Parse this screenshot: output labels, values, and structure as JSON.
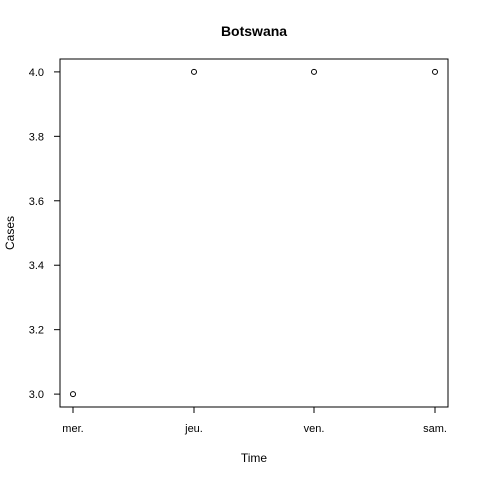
{
  "chart_data": {
    "type": "scatter",
    "title": "Botswana",
    "xlabel": "Time",
    "ylabel": "Cases",
    "categories": [
      "mer.",
      "jeu.",
      "ven.",
      "sam."
    ],
    "series": [
      {
        "values": [
          3.0,
          4.0,
          4.0,
          4.0
        ]
      }
    ],
    "ylim": [
      2.96,
      4.04
    ],
    "y_ticks": [
      3.0,
      3.2,
      3.4,
      3.6,
      3.8,
      4.0
    ],
    "y_tick_labels": [
      "3.0",
      "3.2",
      "3.4",
      "3.6",
      "3.8",
      "4.0"
    ],
    "marker": "open-circle",
    "grid": false,
    "legend": "none",
    "colors": {
      "point_stroke": "#000000",
      "axis": "#000000",
      "background": "#ffffff"
    }
  }
}
